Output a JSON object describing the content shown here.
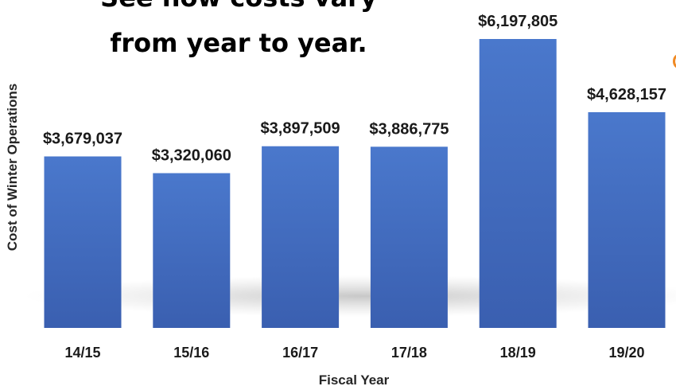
{
  "title": {
    "line1": "See how costs vary",
    "line2": "from year to year."
  },
  "chart_data": {
    "type": "bar",
    "categories": [
      "14/15",
      "15/16",
      "16/17",
      "17/18",
      "18/19",
      "19/20"
    ],
    "values": [
      3679037,
      3320060,
      3897509,
      3886775,
      6197805,
      4628157
    ],
    "data_labels": [
      "$3,679,037",
      "$3,320,060",
      "$3,897,509",
      "$3,886,775",
      "$6,197,805",
      "$4,628,157"
    ],
    "xlabel": "Fiscal Year",
    "ylabel": "Cost of Winter Operations",
    "ylim": [
      0,
      6197805
    ],
    "grid": false,
    "legend": "none",
    "colors": {
      "bar_top": "#4a78cc",
      "bar_bottom": "#3a5fb0",
      "label": "#1a1a1a"
    }
  }
}
